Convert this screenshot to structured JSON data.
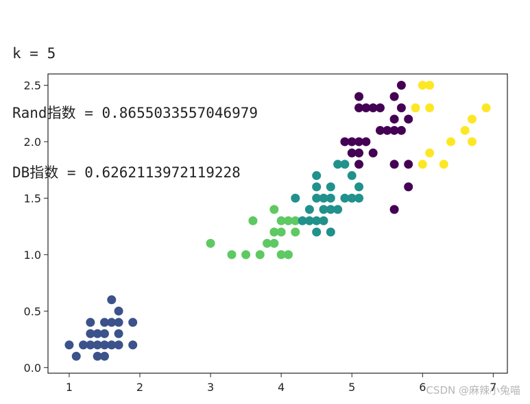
{
  "output_lines": [
    "k = 5",
    "Rand指数 = 0.8655033557046979",
    "DB指数 = 0.6262113972119228"
  ],
  "watermark": "CSDN @麻辣小兔喵",
  "chart_data": {
    "type": "scatter",
    "title": "",
    "xlabel": "",
    "ylabel": "",
    "xlim": [
      0.7,
      7.2
    ],
    "ylim": [
      -0.05,
      2.6
    ],
    "xticks": [
      1,
      2,
      3,
      4,
      5,
      6,
      7
    ],
    "yticks": [
      0.0,
      0.5,
      1.0,
      1.5,
      2.0,
      2.5
    ],
    "grid": false,
    "legend": "none",
    "series": [
      {
        "color": "#3b528b",
        "points": [
          [
            1.0,
            0.2
          ],
          [
            1.1,
            0.1
          ],
          [
            1.2,
            0.2
          ],
          [
            1.3,
            0.2
          ],
          [
            1.3,
            0.3
          ],
          [
            1.3,
            0.4
          ],
          [
            1.4,
            0.1
          ],
          [
            1.4,
            0.2
          ],
          [
            1.4,
            0.3
          ],
          [
            1.5,
            0.1
          ],
          [
            1.5,
            0.2
          ],
          [
            1.5,
            0.3
          ],
          [
            1.5,
            0.4
          ],
          [
            1.6,
            0.2
          ],
          [
            1.6,
            0.4
          ],
          [
            1.6,
            0.6
          ],
          [
            1.7,
            0.2
          ],
          [
            1.7,
            0.3
          ],
          [
            1.7,
            0.4
          ],
          [
            1.7,
            0.5
          ],
          [
            1.9,
            0.2
          ],
          [
            1.9,
            0.4
          ]
        ]
      },
      {
        "color": "#5ec962",
        "points": [
          [
            3.0,
            1.1
          ],
          [
            3.3,
            1.0
          ],
          [
            3.5,
            1.0
          ],
          [
            3.6,
            1.3
          ],
          [
            3.7,
            1.0
          ],
          [
            3.8,
            1.1
          ],
          [
            3.9,
            1.1
          ],
          [
            3.9,
            1.2
          ],
          [
            3.9,
            1.4
          ],
          [
            4.0,
            1.0
          ],
          [
            4.0,
            1.2
          ],
          [
            4.0,
            1.3
          ],
          [
            4.1,
            1.0
          ],
          [
            4.1,
            1.3
          ],
          [
            4.2,
            1.2
          ],
          [
            4.2,
            1.3
          ]
        ]
      },
      {
        "color": "#21918c",
        "points": [
          [
            4.2,
            1.5
          ],
          [
            4.3,
            1.3
          ],
          [
            4.4,
            1.3
          ],
          [
            4.4,
            1.4
          ],
          [
            4.5,
            1.2
          ],
          [
            4.5,
            1.3
          ],
          [
            4.5,
            1.5
          ],
          [
            4.5,
            1.6
          ],
          [
            4.5,
            1.7
          ],
          [
            4.6,
            1.3
          ],
          [
            4.6,
            1.4
          ],
          [
            4.6,
            1.5
          ],
          [
            4.7,
            1.2
          ],
          [
            4.7,
            1.4
          ],
          [
            4.7,
            1.5
          ],
          [
            4.7,
            1.6
          ],
          [
            4.8,
            1.4
          ],
          [
            4.8,
            1.8
          ],
          [
            4.9,
            1.5
          ],
          [
            4.9,
            1.8
          ],
          [
            5.0,
            1.5
          ],
          [
            5.0,
            1.7
          ],
          [
            5.1,
            1.5
          ],
          [
            5.1,
            1.6
          ]
        ]
      },
      {
        "color": "#440154",
        "points": [
          [
            4.9,
            2.0
          ],
          [
            5.0,
            1.9
          ],
          [
            5.0,
            2.0
          ],
          [
            5.1,
            1.8
          ],
          [
            5.1,
            1.9
          ],
          [
            5.1,
            2.0
          ],
          [
            5.1,
            2.3
          ],
          [
            5.1,
            2.4
          ],
          [
            5.2,
            2.0
          ],
          [
            5.2,
            2.3
          ],
          [
            5.3,
            1.9
          ],
          [
            5.3,
            2.3
          ],
          [
            5.4,
            2.1
          ],
          [
            5.4,
            2.3
          ],
          [
            5.5,
            2.1
          ],
          [
            5.6,
            1.4
          ],
          [
            5.6,
            1.8
          ],
          [
            5.6,
            2.1
          ],
          [
            5.6,
            2.2
          ],
          [
            5.6,
            2.4
          ],
          [
            5.7,
            2.1
          ],
          [
            5.7,
            2.3
          ],
          [
            5.7,
            2.5
          ],
          [
            5.8,
            1.6
          ],
          [
            5.8,
            1.8
          ],
          [
            5.8,
            2.2
          ]
        ]
      },
      {
        "color": "#fde725",
        "points": [
          [
            5.9,
            2.3
          ],
          [
            6.0,
            1.8
          ],
          [
            6.0,
            2.5
          ],
          [
            6.1,
            1.9
          ],
          [
            6.1,
            2.3
          ],
          [
            6.1,
            2.5
          ],
          [
            6.3,
            1.8
          ],
          [
            6.4,
            2.0
          ],
          [
            6.6,
            2.1
          ],
          [
            6.7,
            2.0
          ],
          [
            6.7,
            2.2
          ],
          [
            6.9,
            2.3
          ]
        ]
      }
    ]
  }
}
